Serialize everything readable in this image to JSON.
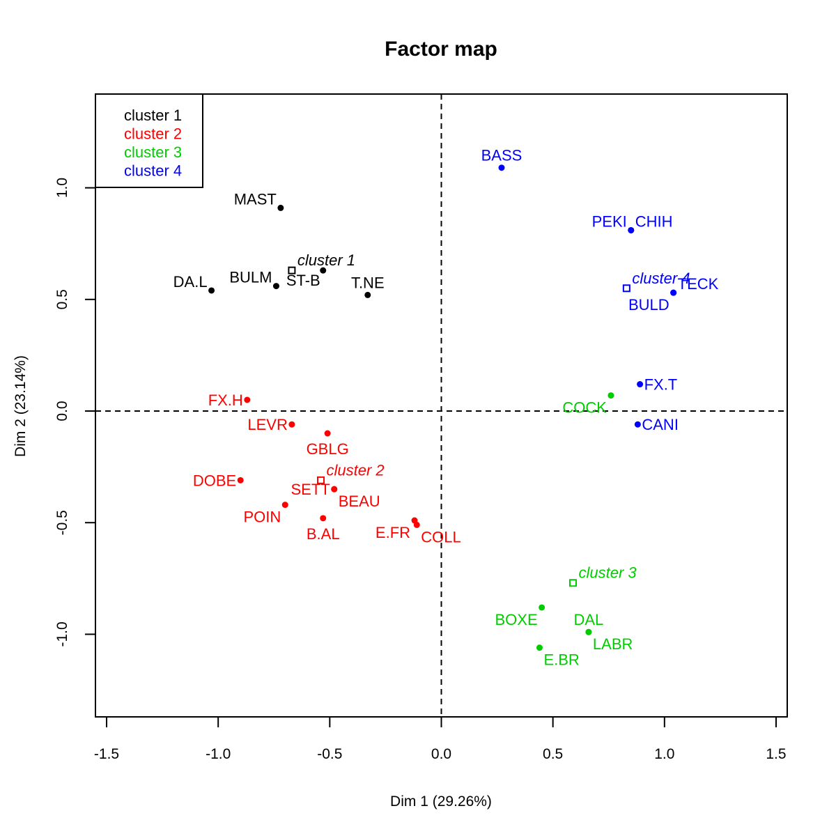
{
  "chart_data": {
    "type": "scatter",
    "title": "Factor map",
    "xlabel": "Dim 1 (29.26%)",
    "ylabel": "Dim 2 (23.14%)",
    "xlim": [
      -1.55,
      1.55
    ],
    "ylim": [
      -1.37,
      1.42
    ],
    "x_ticks": [
      -1.5,
      -1.0,
      -0.5,
      0.0,
      0.5,
      1.0,
      1.5
    ],
    "x_tick_labels": [
      "-1.5",
      "-1.0",
      "-0.5",
      "0.0",
      "0.5",
      "1.0",
      "1.5"
    ],
    "y_ticks": [
      -1.0,
      -0.5,
      0.0,
      0.5,
      1.0
    ],
    "y_tick_labels": [
      "-1.0",
      "-0.5",
      "0.0",
      "0.5",
      "1.0"
    ],
    "grid": false,
    "reference_lines": {
      "x": 0,
      "y": 0,
      "style": "dashed"
    },
    "legend": {
      "position": "top-left",
      "entries": [
        "cluster 1",
        "cluster 2",
        "cluster 3",
        "cluster 4"
      ]
    },
    "series": [
      {
        "name": "cluster 1",
        "color": "#000000",
        "points": [
          {
            "label": "MAST",
            "x": -0.72,
            "y": 0.91,
            "anchor": "nw"
          },
          {
            "label": "DA.L",
            "x": -1.03,
            "y": 0.54,
            "anchor": "nw"
          },
          {
            "label": "BULM",
            "x": -0.74,
            "y": 0.56,
            "anchor": "nw"
          },
          {
            "label": "ST-B",
            "x": -0.53,
            "y": 0.63,
            "anchor": "sw-below"
          },
          {
            "label": "T.NE",
            "x": -0.33,
            "y": 0.52,
            "anchor": "n"
          }
        ],
        "center": {
          "label": "cluster 1",
          "x": -0.67,
          "y": 0.63
        }
      },
      {
        "name": "cluster 2",
        "color": "#ff0000",
        "points": [
          {
            "label": "FX.H",
            "x": -0.87,
            "y": 0.05,
            "anchor": "w"
          },
          {
            "label": "LEVR",
            "x": -0.67,
            "y": -0.06,
            "anchor": "w"
          },
          {
            "label": "GBLG",
            "x": -0.51,
            "y": -0.1,
            "anchor": "s"
          },
          {
            "label": "DOBE",
            "x": -0.9,
            "y": -0.31,
            "anchor": "w"
          },
          {
            "label": "SETT",
            "x": -0.48,
            "y": -0.35,
            "anchor": "w"
          },
          {
            "label": "BEAU",
            "x": -0.48,
            "y": -0.35,
            "anchor": "se"
          },
          {
            "label": "POIN",
            "x": -0.7,
            "y": -0.42,
            "anchor": "sw"
          },
          {
            "label": "B.AL",
            "x": -0.53,
            "y": -0.48,
            "anchor": "s"
          },
          {
            "label": "E.FR",
            "x": -0.12,
            "y": -0.49,
            "anchor": "sw"
          },
          {
            "label": "COLL",
            "x": -0.11,
            "y": -0.51,
            "anchor": "se"
          }
        ],
        "center": {
          "label": "cluster 2",
          "x": -0.54,
          "y": -0.31
        }
      },
      {
        "name": "cluster 3",
        "color": "#00cd00",
        "points": [
          {
            "label": "COCK",
            "x": 0.76,
            "y": 0.07,
            "anchor": "sw"
          },
          {
            "label": "BOXE",
            "x": 0.45,
            "y": -0.88,
            "anchor": "sw"
          },
          {
            "label": "DAL",
            "x": 0.66,
            "y": -0.99,
            "anchor": "n"
          },
          {
            "label": "LABR",
            "x": 0.66,
            "y": -0.99,
            "anchor": "se"
          },
          {
            "label": "E.BR",
            "x": 0.44,
            "y": -1.06,
            "anchor": "se"
          }
        ],
        "center": {
          "label": "cluster 3",
          "x": 0.59,
          "y": -0.77
        }
      },
      {
        "name": "cluster 4",
        "color": "#0000ff",
        "points": [
          {
            "label": "BASS",
            "x": 0.27,
            "y": 1.09,
            "anchor": "n"
          },
          {
            "label": "PEKI",
            "x": 0.85,
            "y": 0.81,
            "anchor": "nw"
          },
          {
            "label": "CHIH",
            "x": 0.85,
            "y": 0.81,
            "anchor": "ne"
          },
          {
            "label": "TECK",
            "x": 1.04,
            "y": 0.53,
            "anchor": "ne"
          },
          {
            "label": "BULD",
            "x": 1.04,
            "y": 0.53,
            "anchor": "sw"
          },
          {
            "label": "FX.T",
            "x": 0.89,
            "y": 0.12,
            "anchor": "e"
          },
          {
            "label": "CANI",
            "x": 0.88,
            "y": -0.06,
            "anchor": "e"
          }
        ],
        "center": {
          "label": "cluster 4",
          "x": 0.83,
          "y": 0.55
        }
      }
    ]
  }
}
